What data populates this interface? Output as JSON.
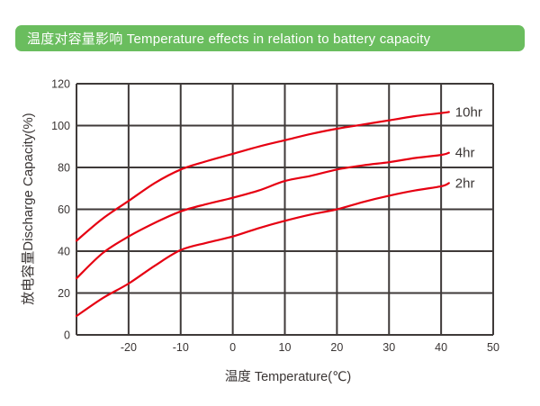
{
  "header": {
    "title": "温度对容量影响 Temperature effects in relation to battery capacity",
    "bg_color": "#6abd5e",
    "text_color": "#ffffff"
  },
  "colors": {
    "curve": "#e60012",
    "grid": "#3f3a39",
    "text": "#3a3534"
  },
  "chart_data": {
    "type": "line",
    "title": "温度对容量影响 Temperature effects in relation to battery capacity",
    "xlabel": "温度 Temperature(℃)",
    "ylabel": "放电容量Discharge Capacity(%)",
    "xlim": [
      -30,
      50
    ],
    "ylim": [
      0,
      120
    ],
    "x_ticks": [
      -20,
      -10,
      0,
      10,
      20,
      30,
      40,
      50
    ],
    "y_ticks": [
      0,
      20,
      40,
      60,
      80,
      100,
      120
    ],
    "x_grid_step": 10,
    "y_grid_step": 20,
    "grid": "on",
    "legend_position": "right-end-labels",
    "x": [
      -30,
      -25,
      -20,
      -15,
      -10,
      -5,
      0,
      5,
      10,
      15,
      20,
      25,
      30,
      35,
      40,
      41.5
    ],
    "series": [
      {
        "name": "10hr",
        "values": [
          45,
          55.5,
          64,
          72.5,
          79,
          83,
          86.5,
          90,
          93,
          96,
          98.5,
          100.5,
          102.5,
          104.5,
          106,
          106.5
        ]
      },
      {
        "name": "4hr",
        "values": [
          27,
          39,
          47,
          53.5,
          59,
          62.5,
          65.5,
          69,
          73.5,
          76,
          79,
          81,
          82.5,
          84.5,
          86,
          87
        ]
      },
      {
        "name": "2hr",
        "values": [
          9,
          17.5,
          24.5,
          33,
          40.5,
          44,
          47,
          51,
          54.5,
          57.5,
          60,
          63.5,
          66.5,
          69,
          71,
          72.5
        ]
      }
    ]
  }
}
